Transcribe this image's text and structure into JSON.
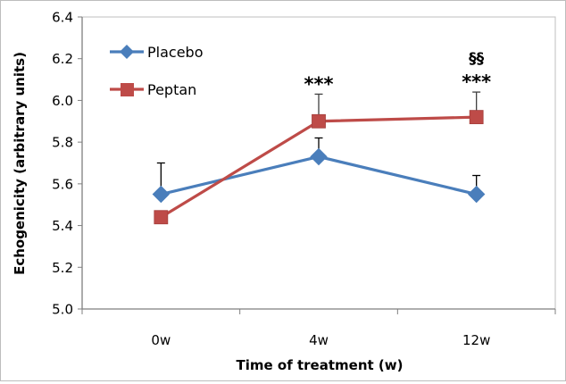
{
  "chart_data": {
    "type": "line",
    "title": "",
    "xlabel": "Time of treatment (w)",
    "ylabel": "Echogenicity (arbitrary units)",
    "categories": [
      "0w",
      "4w",
      "12w"
    ],
    "ylim": [
      5.0,
      6.4
    ],
    "yticks": [
      "5.0",
      "5.2",
      "5.4",
      "5.6",
      "5.8",
      "6.0",
      "6.2",
      "6.4"
    ],
    "ytick_values": [
      5.0,
      5.2,
      5.4,
      5.6,
      5.8,
      6.0,
      6.2,
      6.4
    ],
    "grid": false,
    "legend_position": "top-left",
    "series": [
      {
        "name": "Placebo",
        "color": "#4a7ebb",
        "marker": "diamond",
        "values": [
          5.55,
          5.73,
          5.55
        ],
        "error_upper": [
          5.7,
          5.82,
          5.64
        ]
      },
      {
        "name": "Peptan",
        "color": "#be4b48",
        "marker": "square",
        "values": [
          5.44,
          5.9,
          5.92
        ],
        "error_upper": [
          5.45,
          6.03,
          6.04
        ]
      }
    ],
    "annotations": [
      {
        "category": "4w",
        "text": "***"
      },
      {
        "category": "12w",
        "text": "***"
      },
      {
        "category": "12w",
        "text": "§§"
      }
    ]
  }
}
